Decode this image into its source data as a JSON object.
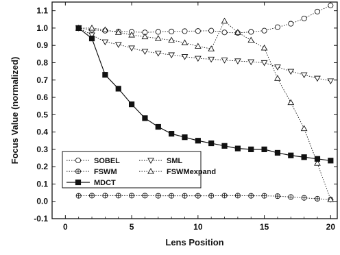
{
  "chart_data": {
    "type": "line",
    "xlabel": "Lens Position",
    "ylabel": "Focus Value (normalized)",
    "xlim": [
      -1,
      20.5
    ],
    "ylim": [
      -0.1,
      1.15
    ],
    "xticks": [
      0,
      5,
      10,
      15,
      20
    ],
    "xtick_labels": [
      "0",
      "5",
      "10",
      "15",
      "20"
    ],
    "yticks": [
      -0.1,
      0.0,
      0.1,
      0.2,
      0.3,
      0.4,
      0.5,
      0.6,
      0.7,
      0.8,
      0.9,
      1.0,
      1.1
    ],
    "ytick_labels": [
      "-0.1",
      "0.0",
      "0.1",
      "0.2",
      "0.3",
      "0.4",
      "0.5",
      "0.6",
      "0.7",
      "0.8",
      "0.9",
      "1.0",
      "1.1"
    ],
    "grid": false,
    "legend_position": "bottom-left",
    "series": [
      {
        "name": "SOBEL",
        "marker": "circle-open",
        "line_style": "dotted",
        "x": [
          1,
          2,
          3,
          4,
          5,
          6,
          7,
          8,
          9,
          10,
          11,
          12,
          13,
          14,
          15,
          16,
          17,
          18,
          19,
          20
        ],
        "y": [
          1.0,
          0.99,
          0.985,
          0.98,
          0.978,
          0.975,
          0.978,
          0.98,
          0.982,
          0.983,
          0.985,
          0.975,
          0.972,
          0.978,
          0.985,
          1.005,
          1.025,
          1.055,
          1.095,
          1.13
        ]
      },
      {
        "name": "SML",
        "marker": "triangle-down-open",
        "line_style": "dotted",
        "x": [
          1,
          2,
          3,
          4,
          5,
          6,
          7,
          8,
          9,
          10,
          11,
          12,
          13,
          14,
          15,
          16,
          17,
          18,
          19,
          20
        ],
        "y": [
          1.0,
          0.96,
          0.92,
          0.905,
          0.885,
          0.865,
          0.855,
          0.845,
          0.835,
          0.825,
          0.82,
          0.815,
          0.81,
          0.805,
          0.8,
          0.775,
          0.75,
          0.73,
          0.71,
          0.695
        ]
      },
      {
        "name": "FSWM",
        "marker": "diamond-cross-open",
        "line_style": "dotted",
        "x": [
          1,
          2,
          3,
          4,
          5,
          6,
          7,
          8,
          9,
          10,
          11,
          12,
          13,
          14,
          15,
          16,
          17,
          18,
          19,
          20
        ],
        "y": [
          0.032,
          0.033,
          0.033,
          0.033,
          0.033,
          0.033,
          0.032,
          0.032,
          0.032,
          0.032,
          0.032,
          0.033,
          0.033,
          0.032,
          0.032,
          0.03,
          0.025,
          0.02,
          0.015,
          0.01
        ]
      },
      {
        "name": "FSWMexpand",
        "marker": "triangle-up-open",
        "line_style": "dotted",
        "x": [
          1,
          2,
          3,
          4,
          5,
          6,
          7,
          8,
          9,
          10,
          11,
          12,
          13,
          14,
          15,
          16,
          17,
          18,
          19,
          20
        ],
        "y": [
          1.0,
          1.0,
          0.99,
          0.975,
          0.96,
          0.95,
          0.94,
          0.93,
          0.915,
          0.895,
          0.88,
          1.04,
          0.975,
          0.93,
          0.885,
          0.71,
          0.57,
          0.42,
          0.22,
          0.01
        ]
      },
      {
        "name": "MDCT",
        "marker": "square-filled",
        "line_style": "solid",
        "x": [
          1,
          2,
          3,
          4,
          5,
          6,
          7,
          8,
          9,
          10,
          11,
          12,
          13,
          14,
          15,
          16,
          17,
          18,
          19,
          20
        ],
        "y": [
          1.0,
          0.94,
          0.73,
          0.65,
          0.56,
          0.48,
          0.43,
          0.39,
          0.37,
          0.35,
          0.335,
          0.32,
          0.305,
          0.3,
          0.3,
          0.28,
          0.265,
          0.255,
          0.245,
          0.235
        ]
      }
    ]
  }
}
